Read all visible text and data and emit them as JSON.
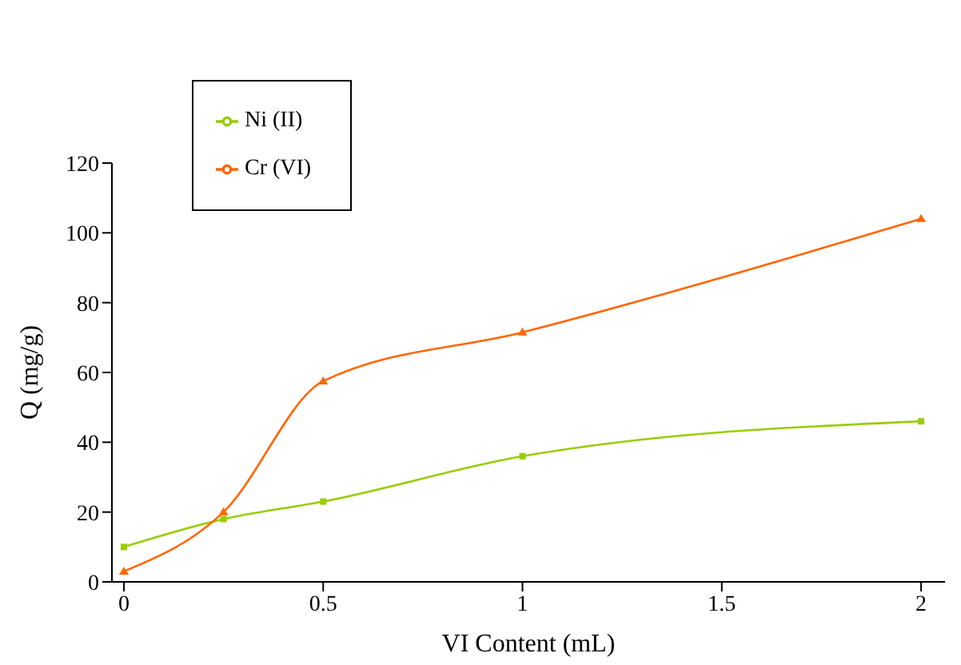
{
  "chart_data": {
    "type": "line",
    "xlabel": "VI Content (mL)",
    "ylabel": "Q (mg/g)",
    "x": [
      0,
      0.25,
      0.5,
      1,
      2
    ],
    "series": [
      {
        "name": "Ni (II)",
        "color": "#99cc00",
        "marker": "square",
        "values": [
          10,
          18,
          23,
          36,
          46
        ]
      },
      {
        "name": "Cr (VI)",
        "color": "#ff6600",
        "marker": "triangle",
        "values": [
          3,
          20,
          57.5,
          71.5,
          104
        ]
      }
    ],
    "xlim": [
      -0.03,
      2.06
    ],
    "xticks": [
      0,
      0.5,
      1,
      1.5,
      2
    ],
    "ylim": [
      0,
      120
    ],
    "yticks": [
      0,
      20,
      40,
      60,
      80,
      100,
      120
    ],
    "grid": false,
    "legend": "top left",
    "line_style": "solid"
  }
}
